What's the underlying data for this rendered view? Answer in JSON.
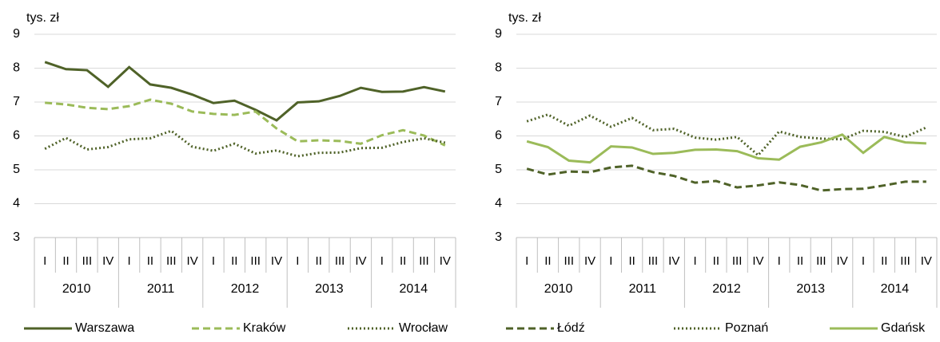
{
  "chart_data": [
    {
      "type": "line",
      "y_label": "tys. zł",
      "categories": [
        "I",
        "II",
        "III",
        "IV",
        "I",
        "II",
        "III",
        "IV",
        "I",
        "II",
        "III",
        "IV",
        "I",
        "II",
        "III",
        "IV",
        "I",
        "II",
        "III",
        "IV"
      ],
      "groups": [
        "2010",
        "2011",
        "2012",
        "2013",
        "2014"
      ],
      "ylim": [
        3,
        9
      ],
      "yticks": [
        3,
        4,
        5,
        6,
        7,
        8,
        9
      ],
      "grid": true,
      "series": [
        {
          "name": "Warszawa",
          "color": "#4f6228",
          "dash": "solid",
          "values": [
            8.18,
            7.97,
            7.94,
            7.45,
            8.03,
            7.52,
            7.42,
            7.22,
            6.97,
            7.04,
            6.77,
            6.46,
            6.99,
            7.02,
            7.18,
            7.42,
            7.3,
            7.31,
            7.44,
            7.31
          ]
        },
        {
          "name": "Kraków",
          "color": "#9bbb59",
          "dash": "dashed",
          "values": [
            6.98,
            6.93,
            6.83,
            6.79,
            6.88,
            7.07,
            6.95,
            6.72,
            6.65,
            6.62,
            6.72,
            6.22,
            5.84,
            5.87,
            5.85,
            5.77,
            6.02,
            6.17,
            6.01,
            5.72
          ]
        },
        {
          "name": "Wrocław",
          "color": "#4f6228",
          "dash": "dotted",
          "values": [
            5.62,
            5.94,
            5.6,
            5.67,
            5.9,
            5.93,
            6.15,
            5.68,
            5.56,
            5.77,
            5.48,
            5.57,
            5.4,
            5.5,
            5.51,
            5.64,
            5.65,
            5.82,
            5.93,
            5.8
          ]
        }
      ]
    },
    {
      "type": "line",
      "y_label": "tys. zł",
      "categories": [
        "I",
        "II",
        "III",
        "IV",
        "I",
        "II",
        "III",
        "IV",
        "I",
        "II",
        "III",
        "IV",
        "I",
        "II",
        "III",
        "IV",
        "I",
        "II",
        "III",
        "IV"
      ],
      "groups": [
        "2010",
        "2011",
        "2012",
        "2013",
        "2014"
      ],
      "ylim": [
        3,
        9
      ],
      "yticks": [
        3,
        4,
        5,
        6,
        7,
        8,
        9
      ],
      "grid": true,
      "series": [
        {
          "name": "Łódź",
          "color": "#4f6228",
          "dash": "dashed",
          "values": [
            5.03,
            4.86,
            4.95,
            4.93,
            5.07,
            5.12,
            4.93,
            4.82,
            4.62,
            4.67,
            4.48,
            4.54,
            4.63,
            4.55,
            4.39,
            4.43,
            4.44,
            4.54,
            4.65,
            4.65
          ]
        },
        {
          "name": "Poznań",
          "color": "#4f6228",
          "dash": "dotted",
          "values": [
            6.43,
            6.63,
            6.3,
            6.6,
            6.27,
            6.53,
            6.17,
            6.21,
            5.95,
            5.89,
            5.97,
            5.43,
            6.13,
            5.97,
            5.92,
            5.9,
            6.15,
            6.12,
            5.97,
            6.25
          ]
        },
        {
          "name": "Gdańsk",
          "color": "#9bbb59",
          "dash": "solid",
          "values": [
            5.84,
            5.67,
            5.27,
            5.22,
            5.69,
            5.66,
            5.47,
            5.5,
            5.59,
            5.6,
            5.55,
            5.34,
            5.3,
            5.68,
            5.81,
            6.04,
            5.5,
            5.97,
            5.81,
            5.78
          ]
        }
      ]
    }
  ]
}
